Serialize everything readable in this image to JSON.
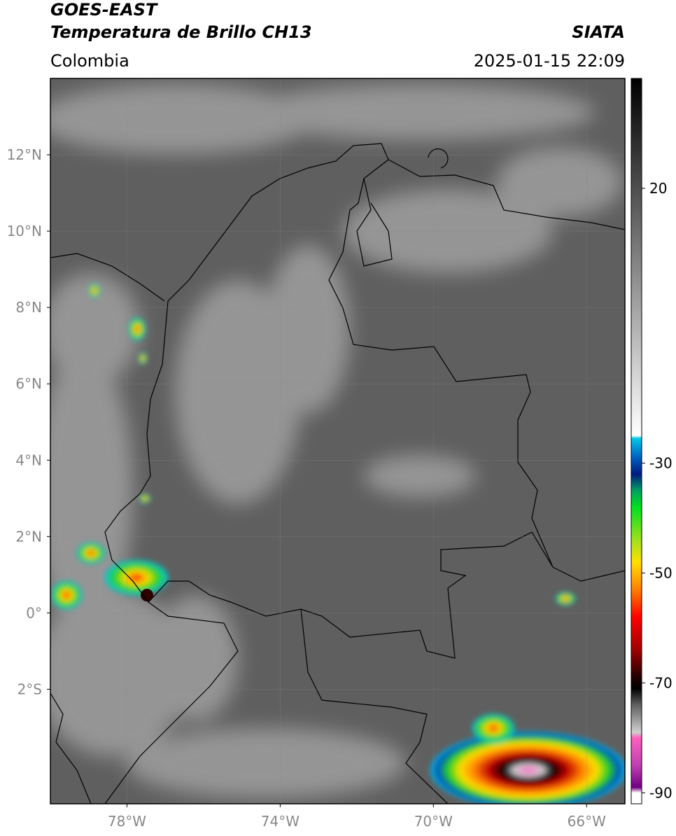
{
  "header": {
    "satellite": "GOES-EAST",
    "product": "Temperatura de Brillo CH13",
    "source": "SIATA",
    "region": "Colombia",
    "timestamp": "2025-01-15 22:09"
  },
  "map": {
    "lon_range": [
      -80,
      -65
    ],
    "lat_range": [
      -5,
      14
    ],
    "lat_ticks": [
      {
        "value": 12,
        "label": "12°N"
      },
      {
        "value": 10,
        "label": "10°N"
      },
      {
        "value": 8,
        "label": "8°N"
      },
      {
        "value": 6,
        "label": "6°N"
      },
      {
        "value": 4,
        "label": "4°N"
      },
      {
        "value": 2,
        "label": "2°N"
      },
      {
        "value": 0,
        "label": "0°"
      },
      {
        "value": -2,
        "label": "2°S"
      }
    ],
    "lon_ticks": [
      {
        "value": -78,
        "label": "78°W"
      },
      {
        "value": -74,
        "label": "74°W"
      },
      {
        "value": -70,
        "label": "70°W"
      },
      {
        "value": -66,
        "label": "66°W"
      }
    ]
  },
  "colorbar": {
    "range": [
      40,
      -92
    ],
    "ticks": [
      20,
      -30,
      -50,
      -70,
      -90
    ],
    "colormap": [
      [
        40,
        "#000000"
      ],
      [
        -25,
        "#ffffff"
      ],
      [
        -25.5,
        "#00c8e8"
      ],
      [
        -29,
        "#0060c0"
      ],
      [
        -32,
        "#001a80"
      ],
      [
        -35,
        "#00a060"
      ],
      [
        -38,
        "#00e020"
      ],
      [
        -44,
        "#a0e020"
      ],
      [
        -48,
        "#ffe000"
      ],
      [
        -53,
        "#ff8000"
      ],
      [
        -58,
        "#ff0000"
      ],
      [
        -64,
        "#a00000"
      ],
      [
        -69,
        "#200000"
      ],
      [
        -71,
        "#000000"
      ],
      [
        -74,
        "#606060"
      ],
      [
        -79,
        "#d0d0d0"
      ],
      [
        -80,
        "#ff60c0"
      ],
      [
        -85,
        "#c040b0"
      ],
      [
        -89,
        "#700080"
      ],
      [
        -90,
        "#ffffff"
      ],
      [
        -92,
        "#ffffff"
      ]
    ]
  }
}
